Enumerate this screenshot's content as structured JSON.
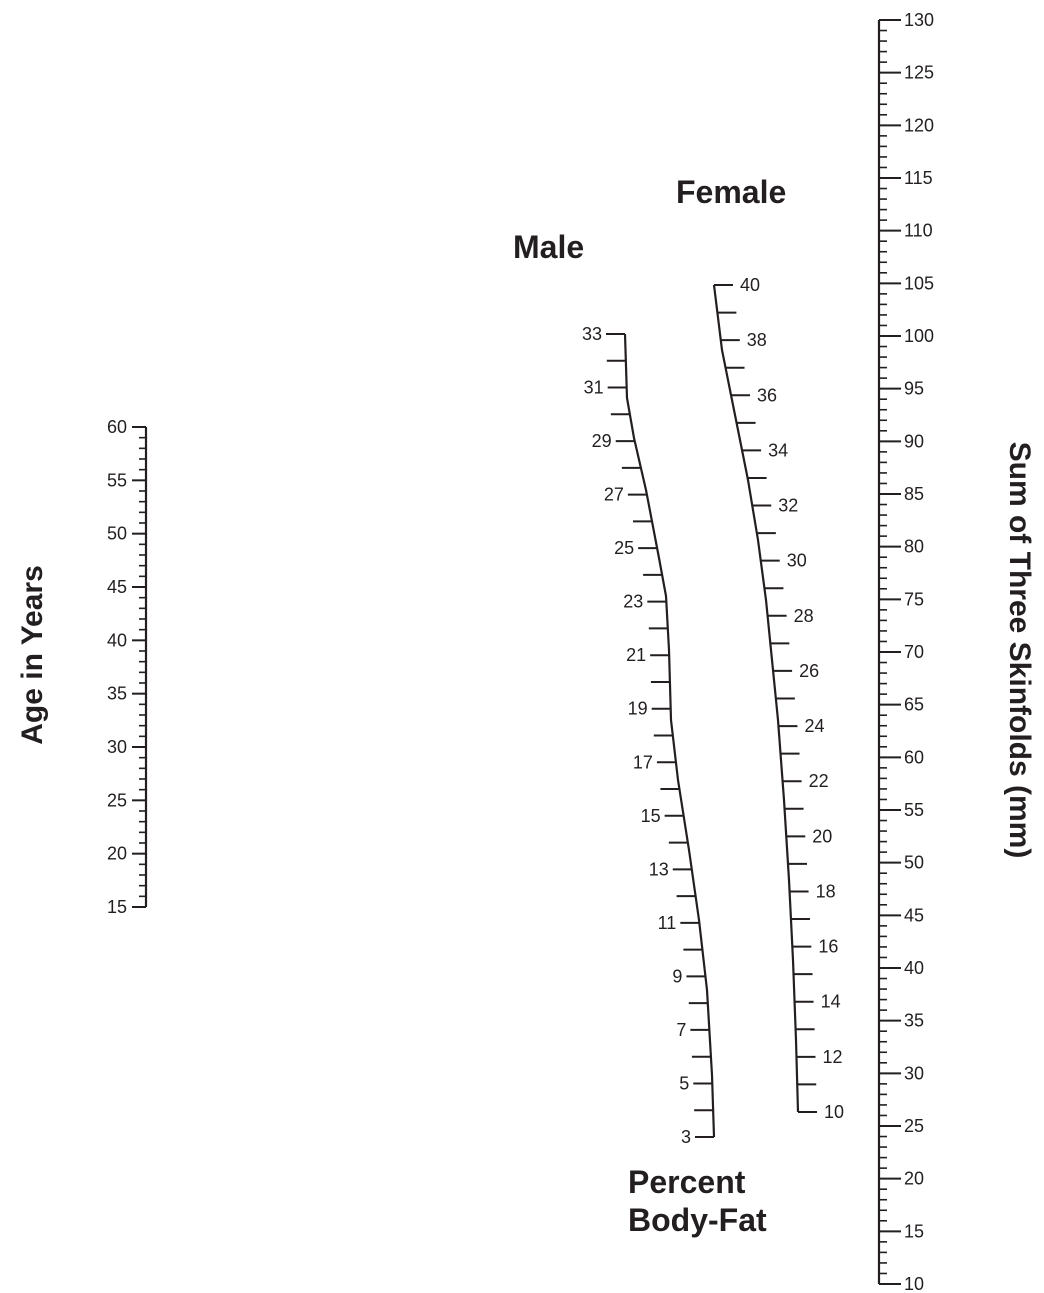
{
  "labels": {
    "age_axis": "Age in Years",
    "skinfold_axis": "Sum of Three Skinfolds (mm)",
    "male": "Male",
    "female": "Female",
    "body_fat_line1": "Percent",
    "body_fat_line2": "Body-Fat"
  },
  "scales": {
    "age": {
      "min": 15,
      "max": 60,
      "labels": [
        15,
        20,
        25,
        30,
        35,
        40,
        45,
        50,
        55,
        60
      ]
    },
    "skinfolds": {
      "min": 10,
      "max": 130,
      "labels": [
        10,
        15,
        20,
        25,
        30,
        35,
        40,
        45,
        50,
        55,
        60,
        65,
        70,
        75,
        80,
        85,
        90,
        95,
        100,
        105,
        110,
        115,
        120,
        125,
        130
      ]
    },
    "male_body_fat": {
      "min": 3,
      "max": 33,
      "labels": [
        3,
        5,
        7,
        9,
        11,
        13,
        15,
        17,
        19,
        21,
        23,
        25,
        27,
        29,
        31,
        33
      ]
    },
    "female_body_fat": {
      "min": 10,
      "max": 40,
      "labels": [
        10,
        12,
        14,
        16,
        18,
        20,
        22,
        24,
        26,
        28,
        30,
        32,
        34,
        36,
        38,
        40
      ]
    }
  },
  "colors": {
    "ink": "#231f20",
    "background": "#ffffff"
  }
}
